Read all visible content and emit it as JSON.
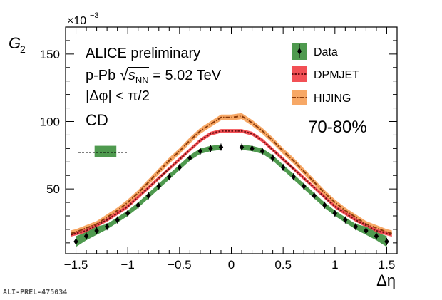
{
  "chart_data": {
    "type": "line",
    "ylabel_main": "G",
    "ylabel_sub": "2",
    "xlabel": "Δη",
    "y_multiplier_base": "×10",
    "y_multiplier_exp": "−3",
    "xlim": [
      -1.6,
      1.6
    ],
    "ylim": [
      2,
      170
    ],
    "x_ticks": [
      -1.5,
      -1,
      -0.5,
      0,
      0.5,
      1,
      1.5
    ],
    "x_tick_labels": [
      "−1.5",
      "−1",
      "−0.5",
      "0",
      "0.5",
      "1",
      "1.5"
    ],
    "y_ticks": [
      50,
      100,
      150
    ],
    "y_tick_labels": [
      "50",
      "100",
      "150"
    ],
    "annotations": {
      "line1": "ALICE preliminary",
      "line2_prefix": "p-Pb",
      "line2_s": "s",
      "line2_sub": "NN",
      "line2_suffix": "= 5.02 TeV",
      "line3": "|Δφ| < π/2",
      "line4": "CD",
      "centrality": "70-80%"
    },
    "series": [
      {
        "name": "Data",
        "color": "#3a8a3a",
        "band_color": "#4f9a4f",
        "x": [
          -1.5,
          -1.4,
          -1.3,
          -1.2,
          -1.1,
          -1.0,
          -0.9,
          -0.8,
          -0.7,
          -0.6,
          -0.5,
          -0.4,
          -0.3,
          -0.2,
          -0.1,
          0.1,
          0.2,
          0.3,
          0.4,
          0.5,
          0.6,
          0.7,
          0.8,
          0.9,
          1.0,
          1.1,
          1.2,
          1.3,
          1.4,
          1.5
        ],
        "values": [
          11,
          15,
          19,
          22,
          27,
          32,
          38,
          45,
          52,
          59,
          66,
          73,
          78,
          80,
          81,
          81,
          80,
          78,
          73,
          66,
          59,
          52,
          45,
          38,
          32,
          27,
          22,
          19,
          15,
          11
        ],
        "band_halfwidth": [
          4,
          3,
          3,
          2,
          2,
          2,
          2,
          2,
          2,
          2,
          2,
          2,
          2,
          2,
          2,
          2,
          2,
          2,
          2,
          2,
          2,
          2,
          2,
          2,
          2,
          2,
          2,
          3,
          3,
          4
        ]
      },
      {
        "name": "DPMJET",
        "color": "#6b0f12",
        "band_color": "#f25055",
        "x": [
          -1.55,
          -1.5,
          -1.4,
          -1.3,
          -1.2,
          -1.1,
          -1.0,
          -0.9,
          -0.8,
          -0.7,
          -0.6,
          -0.5,
          -0.4,
          -0.3,
          -0.2,
          -0.1,
          0.0,
          0.1,
          0.2,
          0.3,
          0.4,
          0.5,
          0.6,
          0.7,
          0.8,
          0.9,
          1.0,
          1.1,
          1.2,
          1.3,
          1.4,
          1.5,
          1.55
        ],
        "values": [
          16,
          17,
          19,
          23,
          27,
          32,
          37,
          44,
          51,
          58,
          65,
          72,
          79,
          86,
          91,
          93,
          93,
          93,
          91,
          86,
          79,
          72,
          65,
          58,
          51,
          44,
          37,
          32,
          27,
          23,
          19,
          17,
          16
        ]
      },
      {
        "name": "HIJING",
        "color": "#8a3a0a",
        "band_color": "#f7a866",
        "x": [
          -1.55,
          -1.5,
          -1.4,
          -1.3,
          -1.2,
          -1.1,
          -1.0,
          -0.9,
          -0.8,
          -0.7,
          -0.6,
          -0.5,
          -0.4,
          -0.3,
          -0.2,
          -0.1,
          0.0,
          0.1,
          0.2,
          0.3,
          0.4,
          0.5,
          0.6,
          0.7,
          0.8,
          0.9,
          1.0,
          1.1,
          1.2,
          1.3,
          1.4,
          1.5,
          1.55
        ],
        "values": [
          17,
          18,
          21,
          24,
          29,
          34,
          40,
          47,
          55,
          63,
          71,
          78,
          86,
          93,
          98,
          103,
          103,
          104,
          99,
          93,
          86,
          78,
          71,
          63,
          55,
          47,
          40,
          34,
          29,
          24,
          21,
          18,
          17
        ]
      }
    ],
    "legend": [
      {
        "label": "Data",
        "marker": "data"
      },
      {
        "label": "DPMJET",
        "marker": "dpmjet"
      },
      {
        "label": "HIJING",
        "marker": "hijing"
      }
    ],
    "legend_placement": "top-right",
    "normalization_band": {
      "x": [
        -1.32,
        -1.11
      ],
      "y": [
        73.5,
        82
      ],
      "line_y": 77,
      "line_x": [
        -1.6,
        -1.0
      ]
    },
    "preliminary_id": "ALI-PREL-475034"
  }
}
